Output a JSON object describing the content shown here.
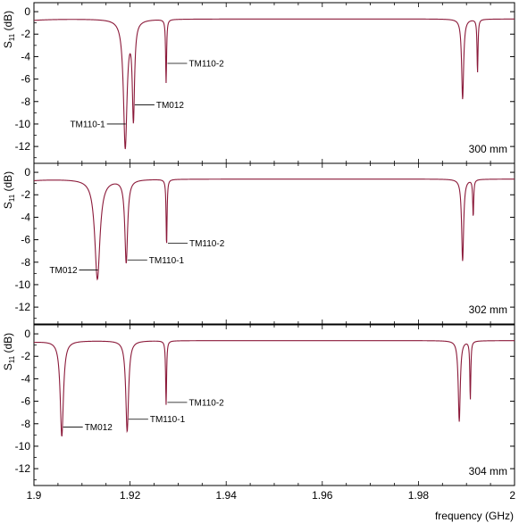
{
  "chart_data": {
    "type": "line",
    "xlabel": "frequency (GHz)",
    "xlim": [
      1.9,
      2.0
    ],
    "x_ticks": [
      "1.9",
      "1.92",
      "1.94",
      "1.96",
      "1.98",
      "2"
    ],
    "ylabel_base": "S",
    "ylabel_sub": "11",
    "ylabel_unit": " (dB)",
    "ylim": [
      -13.5,
      0.8
    ],
    "y_tick_values": [
      0,
      -2,
      -4,
      -6,
      -8,
      -10,
      -12
    ],
    "y_ticks": [
      "0",
      "-2",
      "-4",
      "-6",
      "-8",
      "-10",
      "-12"
    ],
    "line_color": "#8B1A3A",
    "panels": [
      {
        "label": "300 mm",
        "baseline_db": -0.65,
        "dips": [
          {
            "f": 1.919,
            "depth": -12.0,
            "width": 0.00045
          },
          {
            "f": 1.9207,
            "depth": -9.2,
            "width": 0.00028
          },
          {
            "f": 1.9275,
            "depth": -6.3,
            "width": 0.00012
          },
          {
            "f": 1.9892,
            "depth": -7.8,
            "width": 0.00025
          },
          {
            "f": 1.9923,
            "depth": -5.4,
            "width": 0.00012
          }
        ],
        "annotations": [
          {
            "text": "TM110-1",
            "f": 1.919,
            "db": -10.0
          },
          {
            "text": "TM012",
            "f": 1.9207,
            "db": -8.3
          },
          {
            "text": "TM110-2",
            "f": 1.9275,
            "db": -4.6
          }
        ]
      },
      {
        "label": "302 mm",
        "baseline_db": -0.6,
        "dips": [
          {
            "f": 1.9132,
            "depth": -9.5,
            "width": 0.00065
          },
          {
            "f": 1.9192,
            "depth": -8.0,
            "width": 0.00035
          },
          {
            "f": 1.9276,
            "depth": -6.5,
            "width": 0.00012
          },
          {
            "f": 1.9892,
            "depth": -7.9,
            "width": 0.00025
          },
          {
            "f": 1.9914,
            "depth": -3.9,
            "width": 0.00012
          }
        ],
        "annotations": [
          {
            "text": "TM012",
            "f": 1.9132,
            "db": -8.7
          },
          {
            "text": "TM110-1",
            "f": 1.9192,
            "db": -7.8
          },
          {
            "text": "TM110-2",
            "f": 1.9276,
            "db": -6.3
          }
        ]
      },
      {
        "label": "304 mm",
        "baseline_db": -0.6,
        "dips": [
          {
            "f": 1.9058,
            "depth": -9.1,
            "width": 0.0004
          },
          {
            "f": 1.9194,
            "depth": -8.7,
            "width": 0.00035
          },
          {
            "f": 1.9275,
            "depth": -6.3,
            "width": 0.00012
          },
          {
            "f": 1.9885,
            "depth": -7.8,
            "width": 0.00025
          },
          {
            "f": 1.9908,
            "depth": -5.8,
            "width": 0.00012
          }
        ],
        "annotations": [
          {
            "text": "TM012",
            "f": 1.9058,
            "db": -8.3
          },
          {
            "text": "TM110-1",
            "f": 1.9194,
            "db": -7.6
          },
          {
            "text": "TM110-2",
            "f": 1.9275,
            "db": -6.1
          }
        ]
      }
    ]
  }
}
